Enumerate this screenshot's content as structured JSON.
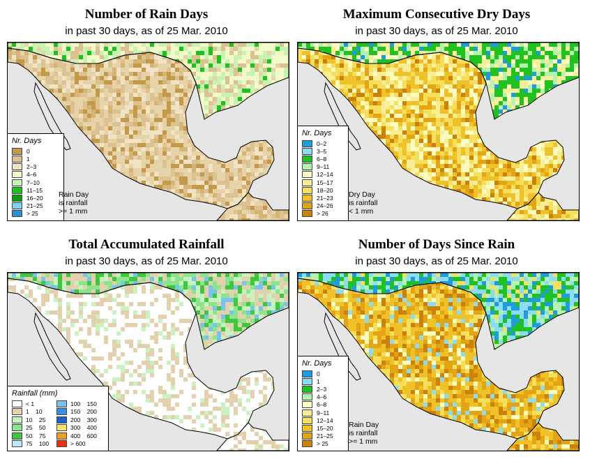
{
  "panels": {
    "rain_days": {
      "title": "Number of Rain Days",
      "subtitle": "in past 30 days, as of  25 Mar. 2010",
      "legend_title": "Nr. Days",
      "legend": [
        {
          "label": "0",
          "color": "#c49a4a"
        },
        {
          "label": "1",
          "color": "#dcc293"
        },
        {
          "label": "2–3",
          "color": "#f0e3c6"
        },
        {
          "label": "4–6",
          "color": "#f3f9c8"
        },
        {
          "label": "7–10",
          "color": "#c8f3b2"
        },
        {
          "label": "11–15",
          "color": "#1ac41a"
        },
        {
          "label": "16–20",
          "color": "#0a9f0a"
        },
        {
          "label": "21–25",
          "color": "#78d4f0"
        },
        {
          "label": "> 25",
          "color": "#2a8fd6"
        }
      ],
      "note": [
        "Rain Day",
        "is rainfall",
        ">= 1 mm"
      ]
    },
    "dry_days": {
      "title": "Maximum Consecutive Dry Days",
      "subtitle": "in past 30 days, as of  25 Mar. 2010",
      "legend_title": "Nr. Days",
      "legend": [
        {
          "label": "0–2",
          "color": "#1f9be0"
        },
        {
          "label": "3–5",
          "color": "#8ddcf5"
        },
        {
          "label": "6–8",
          "color": "#1fc21f"
        },
        {
          "label": "9–11",
          "color": "#b6f2b0"
        },
        {
          "label": "12–14",
          "color": "#fbfbc2"
        },
        {
          "label": "15–17",
          "color": "#f7ee97"
        },
        {
          "label": "18–20",
          "color": "#f5df5c"
        },
        {
          "label": "21–23",
          "color": "#f0c22a"
        },
        {
          "label": "24–26",
          "color": "#e4a514"
        },
        {
          "label": "> 26",
          "color": "#cc820a"
        }
      ],
      "note": [
        "Dry Day",
        "is rainfall",
        "< 1 mm"
      ]
    },
    "rainfall": {
      "title": "Total Accumulated Rainfall",
      "subtitle": "in past 30 days, as of  25 Mar. 2010",
      "legend_title": "Rainfall (mm)",
      "legend": [
        {
          "label": "< 1",
          "color": "#ffffff"
        },
        {
          "label": "1    10",
          "color": "#e3d1ae"
        },
        {
          "label": "10    25",
          "color": "#c8f2c0"
        },
        {
          "label": "25    50",
          "color": "#8ce58c"
        },
        {
          "label": "50    75",
          "color": "#3ec83e"
        },
        {
          "label": "75    100",
          "color": "#bfe8f8"
        },
        {
          "label": "100    150",
          "color": "#7ac3ef"
        },
        {
          "label": "150    200",
          "color": "#3a8ee0"
        },
        {
          "label": "200    300",
          "color": "#1f5fcc"
        },
        {
          "label": "300    400",
          "color": "#f8e070"
        },
        {
          "label": "400    600",
          "color": "#f0a020"
        },
        {
          "label": "> 600",
          "color": "#e63010"
        }
      ]
    },
    "since_rain": {
      "title": "Number of Days Since Rain",
      "subtitle": "in past 30 days, as of  25 Mar. 2010",
      "legend_title": "Nr. Days",
      "legend": [
        {
          "label": "0",
          "color": "#1f9be0"
        },
        {
          "label": "1",
          "color": "#8ddcf5"
        },
        {
          "label": "2–3",
          "color": "#1fc21f"
        },
        {
          "label": "4–6",
          "color": "#b6f2b0"
        },
        {
          "label": "6–8",
          "color": "#fbfbc2"
        },
        {
          "label": "9–11",
          "color": "#f7ee97"
        },
        {
          "label": "12–14",
          "color": "#f5df5c"
        },
        {
          "label": "15–20",
          "color": "#f0c22a"
        },
        {
          "label": "21–25",
          "color": "#e4a514"
        },
        {
          "label": "> 25",
          "color": "#cc820a"
        }
      ],
      "note": [
        "Rain Day",
        "is rainfall",
        ">= 1 mm"
      ]
    }
  },
  "colors": {
    "ocean": "#e6e6e6",
    "border": "#000000"
  }
}
